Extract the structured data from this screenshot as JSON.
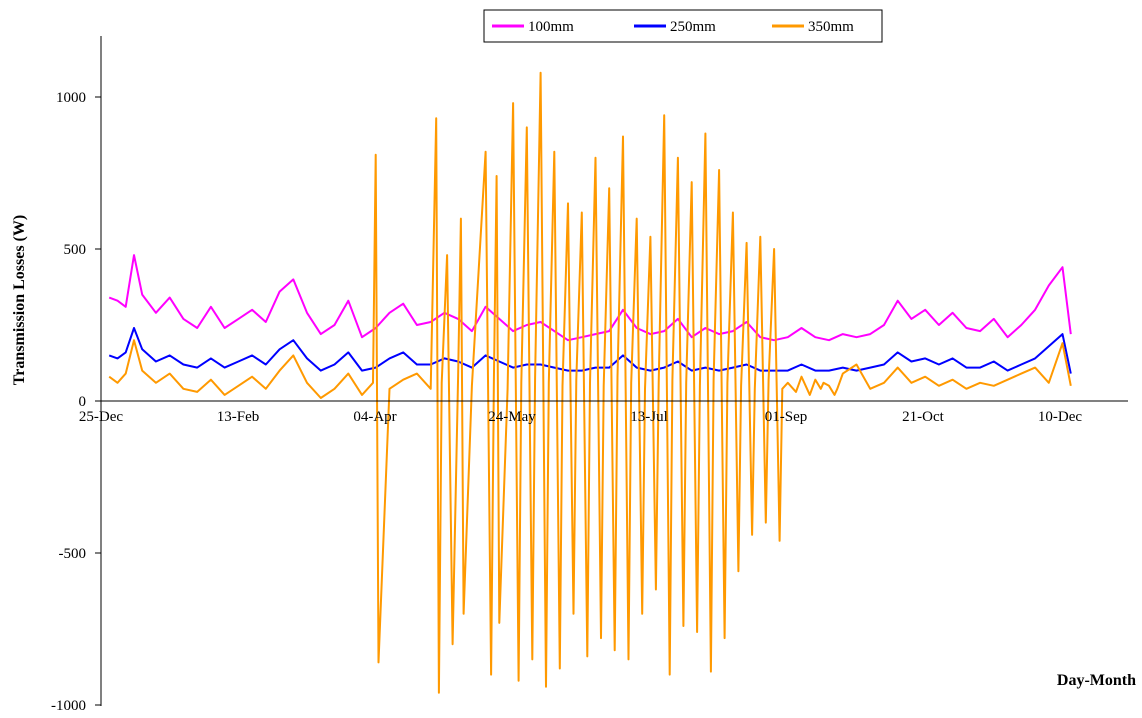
{
  "chart_data": {
    "type": "line",
    "title": "",
    "xlabel": "Day-Month",
    "ylabel": "Transmission Losses (W)",
    "ylim": [
      -1000,
      1000
    ],
    "y_ticks": [
      -1000,
      -500,
      0,
      500,
      1000
    ],
    "x_ticks": [
      "25-Dec",
      "13-Feb",
      "04-Apr",
      "24-May",
      "13-Jul",
      "01-Sep",
      "21-Oct",
      "10-Dec"
    ],
    "x_range_days": [
      0,
      360
    ],
    "grid": false,
    "legend_position": "top-center",
    "series": [
      {
        "name": "100mm",
        "color": "#ff00ff",
        "x_days": [
          3,
          6,
          9,
          12,
          15,
          20,
          25,
          30,
          35,
          40,
          45,
          50,
          55,
          60,
          65,
          70,
          75,
          80,
          85,
          90,
          95,
          100,
          105,
          110,
          115,
          120,
          125,
          130,
          135,
          140,
          145,
          150,
          155,
          160,
          165,
          170,
          175,
          180,
          185,
          190,
          195,
          200,
          205,
          210,
          215,
          220,
          225,
          230,
          235,
          240,
          245,
          250,
          255,
          260,
          265,
          270,
          275,
          280,
          285,
          290,
          295,
          300,
          305,
          310,
          315,
          320,
          325,
          330,
          335,
          340,
          345,
          350,
          353
        ],
        "values": [
          340,
          330,
          310,
          480,
          350,
          290,
          340,
          270,
          240,
          310,
          240,
          270,
          300,
          260,
          360,
          400,
          290,
          220,
          250,
          330,
          210,
          240,
          290,
          320,
          250,
          260,
          290,
          270,
          230,
          310,
          270,
          230,
          250,
          260,
          230,
          200,
          210,
          220,
          230,
          300,
          240,
          220,
          230,
          270,
          210,
          240,
          220,
          230,
          260,
          210,
          200,
          210,
          240,
          210,
          200,
          220,
          210,
          220,
          250,
          330,
          270,
          300,
          250,
          290,
          240,
          230,
          270,
          210,
          250,
          300,
          380,
          440,
          220
        ]
      },
      {
        "name": "250mm",
        "color": "#0000ff",
        "x_days": [
          3,
          6,
          9,
          12,
          15,
          20,
          25,
          30,
          35,
          40,
          45,
          50,
          55,
          60,
          65,
          70,
          75,
          80,
          85,
          90,
          95,
          100,
          105,
          110,
          115,
          120,
          125,
          130,
          135,
          140,
          145,
          150,
          155,
          160,
          165,
          170,
          175,
          180,
          185,
          190,
          195,
          200,
          205,
          210,
          215,
          220,
          225,
          230,
          235,
          240,
          245,
          250,
          255,
          260,
          265,
          270,
          275,
          280,
          285,
          290,
          295,
          300,
          305,
          310,
          315,
          320,
          325,
          330,
          335,
          340,
          345,
          350,
          353
        ],
        "values": [
          150,
          140,
          160,
          240,
          170,
          130,
          150,
          120,
          110,
          140,
          110,
          130,
          150,
          120,
          170,
          200,
          140,
          100,
          120,
          160,
          100,
          110,
          140,
          160,
          120,
          120,
          140,
          130,
          110,
          150,
          130,
          110,
          120,
          120,
          110,
          100,
          100,
          110,
          110,
          150,
          110,
          100,
          110,
          130,
          100,
          110,
          100,
          110,
          120,
          100,
          100,
          100,
          120,
          100,
          100,
          110,
          100,
          110,
          120,
          160,
          130,
          140,
          120,
          140,
          110,
          110,
          130,
          100,
          120,
          140,
          180,
          220,
          90
        ]
      },
      {
        "name": "350mm",
        "color": "#ff9900",
        "x_days": [
          3,
          6,
          9,
          12,
          15,
          20,
          25,
          30,
          35,
          40,
          45,
          50,
          55,
          60,
          65,
          70,
          75,
          80,
          85,
          90,
          95,
          99,
          100,
          101,
          105,
          110,
          115,
          120,
          122,
          123,
          124,
          126,
          128,
          130,
          131,
          132,
          135,
          140,
          142,
          143,
          144,
          145,
          148,
          150,
          152,
          153,
          155,
          157,
          158,
          160,
          162,
          163,
          165,
          167,
          168,
          170,
          172,
          173,
          175,
          177,
          178,
          180,
          182,
          183,
          185,
          187,
          188,
          190,
          192,
          193,
          195,
          197,
          198,
          200,
          202,
          203,
          205,
          207,
          208,
          210,
          212,
          213,
          215,
          217,
          218,
          220,
          222,
          223,
          225,
          227,
          228,
          230,
          232,
          233,
          235,
          237,
          238,
          240,
          242,
          243,
          245,
          247,
          248,
          250,
          253,
          255,
          258,
          260,
          262,
          263,
          265,
          267,
          268,
          270,
          275,
          280,
          285,
          290,
          295,
          300,
          305,
          310,
          315,
          320,
          325,
          330,
          335,
          340,
          345,
          350,
          353
        ],
        "values": [
          80,
          60,
          90,
          200,
          100,
          60,
          90,
          40,
          30,
          70,
          20,
          50,
          80,
          40,
          100,
          150,
          60,
          10,
          40,
          90,
          20,
          60,
          810,
          -860,
          40,
          70,
          90,
          40,
          930,
          -960,
          60,
          480,
          -800,
          80,
          600,
          -700,
          50,
          820,
          -900,
          70,
          740,
          -730,
          40,
          980,
          -920,
          60,
          900,
          -850,
          80,
          1080,
          -940,
          60,
          820,
          -880,
          50,
          650,
          -700,
          70,
          620,
          -840,
          60,
          800,
          -780,
          50,
          700,
          -820,
          80,
          870,
          -850,
          60,
          600,
          -700,
          40,
          540,
          -620,
          60,
          940,
          -900,
          70,
          800,
          -740,
          60,
          720,
          -760,
          50,
          880,
          -890,
          70,
          760,
          -780,
          60,
          620,
          -560,
          50,
          520,
          -440,
          40,
          540,
          -400,
          70,
          500,
          -460,
          40,
          60,
          30,
          80,
          20,
          70,
          40,
          60,
          50,
          20,
          40,
          90,
          120,
          40,
          60,
          110,
          60,
          80,
          50,
          70,
          40,
          60,
          50,
          70,
          90,
          110,
          60,
          190,
          50
        ]
      }
    ]
  }
}
